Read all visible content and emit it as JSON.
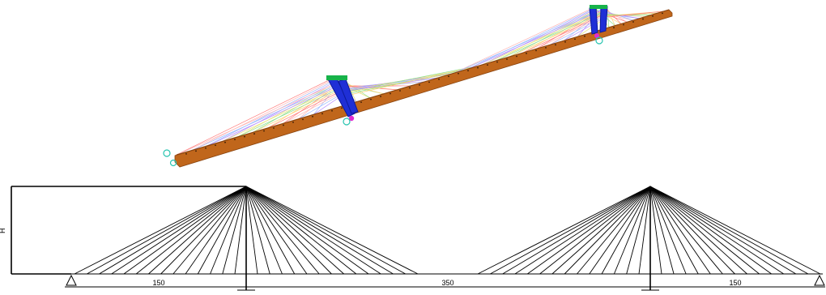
{
  "model_view": {
    "colors": {
      "deck": "#c0661b",
      "deck_edge": "#8a4510",
      "pylon": "#1f2fd6",
      "pylon_dark": "#0c1a9a",
      "pylon_top": "#17b34a",
      "anchor": "#e02bd0",
      "support": "#27c4b0",
      "cable_palette": [
        "#ff7b7b",
        "#ffb3b3",
        "#9ab8ff",
        "#b58cff",
        "#e6e27a",
        "#8ee08e",
        "#ffd27a"
      ]
    }
  },
  "elevation": {
    "labels": {
      "height": "H",
      "left_span": "150",
      "main_span": "350",
      "right_span": "150"
    },
    "cables_per_fan_side": 14,
    "colors": {
      "line": "#000000"
    }
  }
}
